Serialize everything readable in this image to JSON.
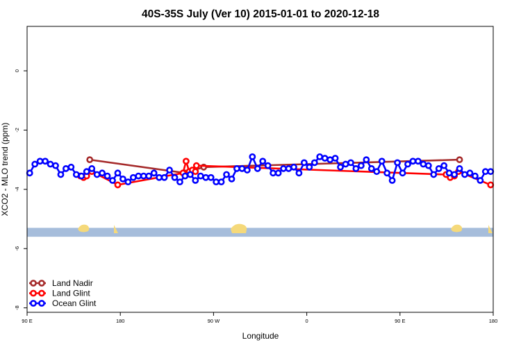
{
  "chart_data": {
    "type": "line",
    "title": "40S-35S July (Ver 10)   2015-01-01 to 2020-12-18",
    "xlabel": "Longitude",
    "ylabel": "XCO2 - MLO trend (ppm)",
    "xlim": [
      90,
      540
    ],
    "ylim": [
      -8.15,
      1.5
    ],
    "x_ticks": [
      {
        "value": 90,
        "label": "90 E"
      },
      {
        "value": 180,
        "label": "180"
      },
      {
        "value": 270,
        "label": "90 W"
      },
      {
        "value": 360,
        "label": "0"
      },
      {
        "value": 450,
        "label": "90 E"
      },
      {
        "value": 540,
        "label": "180"
      }
    ],
    "y_ticks": [
      {
        "value": 0,
        "label": "0"
      },
      {
        "value": -2,
        "label": "-2"
      },
      {
        "value": -4,
        "label": "-4"
      },
      {
        "value": -6,
        "label": "-6"
      },
      {
        "value": -8,
        "label": "-8"
      }
    ],
    "grid": false,
    "legend_position": "bottom-left",
    "map_strip": {
      "y_top": -5.3,
      "y_bottom": -5.6,
      "ocean_color": "#a6bddb",
      "land_color": "#f5d97a"
    },
    "series": [
      {
        "name": "Land Nadir",
        "color": "#a52a2a",
        "x": [
          150.5,
          242.5,
          260.5,
          507.5
        ],
        "y": [
          -3.0,
          -3.45,
          -3.25,
          -3.0
        ]
      },
      {
        "name": "Land Glint",
        "color": "#ff0000",
        "x": [
          141.5,
          144.5,
          147.5,
          152.5,
          177.5,
          240.5,
          243.5,
          246.5,
          249.5,
          252.5,
          253.5,
          494.5,
          498.5,
          502.5,
          506.5,
          537.5
        ],
        "y": [
          -3.55,
          -3.6,
          -3.55,
          -3.4,
          -3.85,
          -3.45,
          -3.05,
          -3.4,
          -3.35,
          -3.4,
          -3.2,
          -3.5,
          -3.6,
          -3.55,
          -3.4,
          -3.85
        ]
      },
      {
        "name": "Ocean Glint",
        "color": "#0000ff",
        "x": [
          92.5,
          97.5,
          102.5,
          107.5,
          112.5,
          117.5,
          122.5,
          127.5,
          132.5,
          137.5,
          142.5,
          147.5,
          152.5,
          157.5,
          162.5,
          167.5,
          172.5,
          177.5,
          182.5,
          187.5,
          192.5,
          197.5,
          202.5,
          207.5,
          212.5,
          217.5,
          222.5,
          227.5,
          232.5,
          237.5,
          242.5,
          247.5,
          252.5,
          257.5,
          262.5,
          267.5,
          272.5,
          277.5,
          282.5,
          287.5,
          292.5,
          297.5,
          302.5,
          307.5,
          312.5,
          317.5,
          322.5,
          327.5,
          332.5,
          337.5,
          342.5,
          347.5,
          352.5,
          357.5,
          362.5,
          367.5,
          372.5,
          377.5,
          382.5,
          387.5,
          392.5,
          397.5,
          402.5,
          407.5,
          412.5,
          417.5,
          422.5,
          427.5,
          432.5,
          437.5,
          442.5,
          447.5,
          452.5,
          457.5,
          462.5,
          467.5,
          472.5,
          477.5,
          482.5,
          487.5,
          492.5,
          497.5,
          502.5,
          507.5,
          512.5,
          517.5,
          522.5,
          527.5,
          532.5,
          537.5
        ],
        "y": [
          -3.45,
          -3.15,
          -3.05,
          -3.05,
          -3.15,
          -3.2,
          -3.5,
          -3.3,
          -3.25,
          -3.5,
          -3.55,
          -3.4,
          -3.3,
          -3.5,
          -3.45,
          -3.55,
          -3.7,
          -3.45,
          -3.65,
          -3.75,
          -3.6,
          -3.55,
          -3.55,
          -3.55,
          -3.45,
          -3.6,
          -3.6,
          -3.35,
          -3.6,
          -3.75,
          -3.55,
          -3.5,
          -3.7,
          -3.55,
          -3.6,
          -3.6,
          -3.75,
          -3.75,
          -3.5,
          -3.65,
          -3.3,
          -3.3,
          -3.35,
          -2.9,
          -3.3,
          -3.05,
          -3.2,
          -3.45,
          -3.45,
          -3.3,
          -3.3,
          -3.25,
          -3.45,
          -3.1,
          -3.25,
          -3.1,
          -2.9,
          -2.95,
          -3.0,
          -2.95,
          -3.25,
          -3.15,
          -3.1,
          -3.3,
          -3.2,
          -3.0,
          -3.3,
          -3.4,
          -3.05,
          -3.45,
          -3.7,
          -3.1,
          -3.45,
          -3.15,
          -3.05,
          -3.05,
          -3.15,
          -3.2,
          -3.5,
          -3.3,
          -3.2,
          -3.45,
          -3.5,
          -3.3,
          -3.5,
          -3.45,
          -3.55,
          -3.7,
          -3.4,
          -3.4
        ]
      }
    ]
  }
}
